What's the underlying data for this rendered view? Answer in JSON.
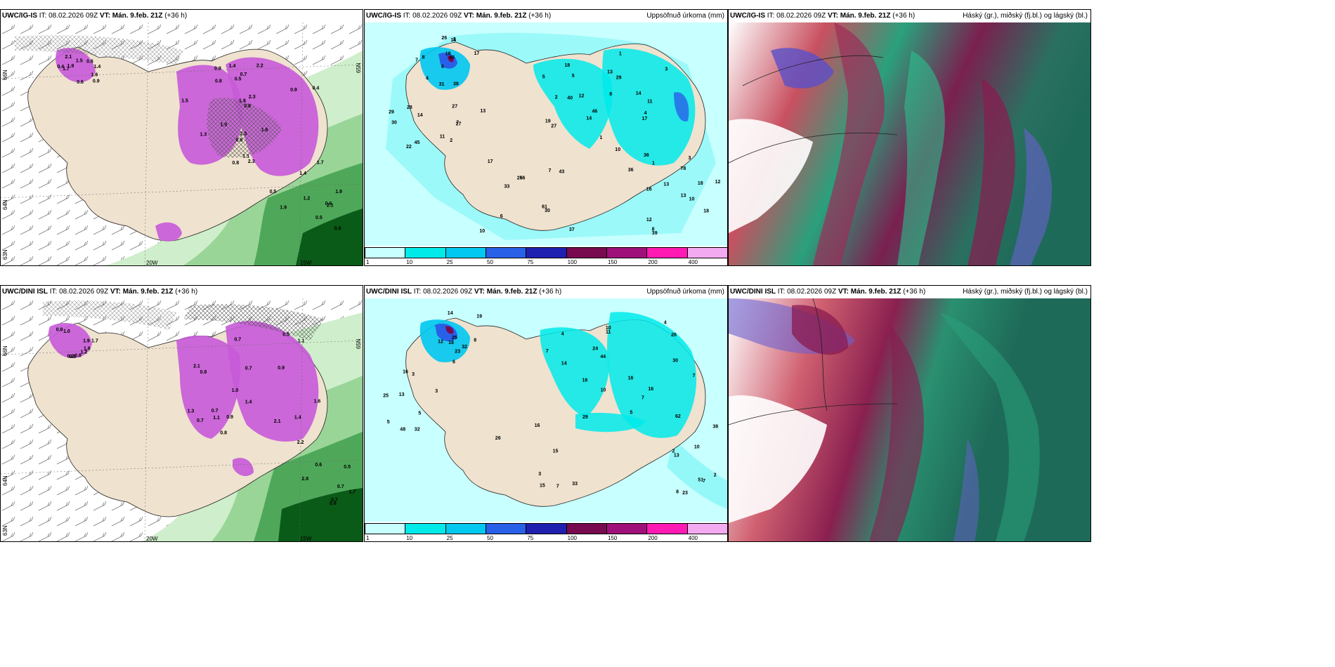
{
  "rows": [
    {
      "model": "UWC/IG-IS",
      "it_label": "IT:",
      "it": "08.02.2026 09Z",
      "vt_label": "VT:",
      "vt": "Mán. 9.feb. 21Z",
      "lead": "(+36 h)",
      "precip_title": "Uppsöfnuð úrkoma (mm)",
      "cloud_title": "Háský (gr.), miðský (fj.bl.) og lágský (bl.)",
      "lat_labels": [
        "66N",
        "64N",
        "65N",
        "63N"
      ],
      "lon_labels": [
        "20W",
        "15W"
      ],
      "precip_values": [
        "6",
        "5",
        "4",
        "8",
        "7",
        "6",
        "2",
        "5",
        "3",
        "10",
        "28",
        "37",
        "7",
        "13",
        "17",
        "18",
        "22",
        "26",
        "18",
        "19",
        "14",
        "39",
        "45",
        "56",
        "45",
        "46",
        "29",
        "78",
        "30",
        "61",
        "17",
        "40",
        "36",
        "13",
        "14",
        "7",
        "4",
        "1",
        "3",
        "18",
        "27",
        "33",
        "8",
        "14",
        "36",
        "16",
        "27",
        "10",
        "31",
        "12",
        "10",
        "12",
        "29",
        "30",
        "38",
        "27",
        "1",
        "1",
        "2",
        "43",
        "26",
        "2",
        "8",
        "13",
        "13",
        "17",
        "16",
        "18",
        "11",
        "12",
        "11"
      ],
      "station_values": [
        "2.1",
        "1.9",
        "0.9",
        "1.9",
        "1.9",
        "2.3",
        "1.6",
        "1.7",
        "1.6",
        "0.5",
        "2.3",
        "2.1",
        "0.6",
        "1.3",
        "0.8",
        "1.2",
        "1.7",
        "1.5",
        "2.2",
        "1.4",
        "0.9",
        "0.8",
        "1.1",
        "1.9",
        "1.5",
        "1.4",
        "0.8",
        "0.5",
        "0.6",
        "0.7",
        "2.3",
        "0.6",
        "0.4",
        "0.9",
        "0.8",
        "0.5",
        "1.4",
        "1.0",
        "0.4",
        "0.6"
      ]
    },
    {
      "model": "UWC/DINI ISL",
      "it_label": "IT:",
      "it": "08.02.2026 09Z",
      "vt_label": "VT:",
      "vt": "Mán. 9.feb. 21Z",
      "lead": "(+36 h)",
      "precip_title": "Uppsöfnuð úrkoma (mm)",
      "cloud_title": "Háský (gr.), miðský (fj.bl.) og lágský (bl.)",
      "lat_labels": [
        "66N",
        "64N",
        "65N",
        "63N"
      ],
      "lon_labels": [
        "20W",
        "15W"
      ],
      "precip_values": [
        "6",
        "4",
        "5",
        "2",
        "3",
        "7",
        "8",
        "14",
        "16",
        "8",
        "5",
        "26",
        "12",
        "16",
        "30",
        "38",
        "25",
        "29",
        "32",
        "44",
        "62",
        "51",
        "48",
        "33",
        "25",
        "24",
        "16",
        "13",
        "32",
        "16",
        "23",
        "10",
        "26",
        "23",
        "16",
        "15",
        "14",
        "7",
        "7",
        "7",
        "3",
        "15",
        "19",
        "10",
        "4",
        "2",
        "5",
        "3",
        "18",
        "11",
        "7",
        "10",
        "13"
      ],
      "station_values": [
        "0.2",
        "1.1",
        "0.9",
        "2.2",
        "1.7",
        "1.3",
        "2.1",
        "2.8",
        "1.9",
        "2.1",
        "1.4",
        "1.7",
        "0.6",
        "0.8",
        "1.1",
        "0.7",
        "1.2",
        "0.9",
        "1.6",
        "0.5",
        "0.8",
        "1.0",
        "0.7",
        "0.6",
        "0.8",
        "0.7",
        "0.5",
        "0.6",
        "1.0",
        "0.8",
        "0.7",
        "0.7",
        "1.6",
        "0.7",
        "1.4"
      ]
    }
  ],
  "legend": {
    "colors": [
      "#c8ffff",
      "#00eaea",
      "#00c8f0",
      "#2860e8",
      "#2020b0",
      "#780a50",
      "#a0107a",
      "#ff1ab4",
      "#f4aaf0"
    ],
    "ticks": [
      "1",
      "10",
      "25",
      "50",
      "75",
      "100",
      "150",
      "200",
      "400"
    ]
  },
  "palette": {
    "land": "#efe2cf",
    "sea_precip": "#c8ffff",
    "snow_purple": "#c65ad8",
    "green_light": "#cfeecb",
    "green_dark": "#0a5a18",
    "cloud_teal": "#2aa07c",
    "cloud_red": "#b02060"
  }
}
